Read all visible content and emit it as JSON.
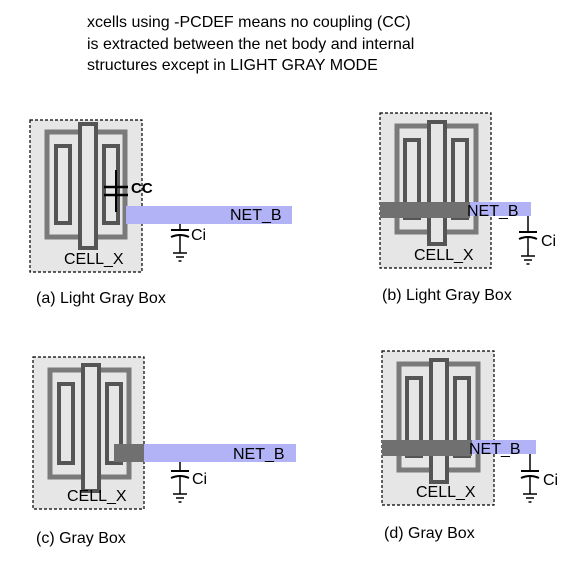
{
  "heading": {
    "lines": [
      "xcells using -PCDEF  means no coupling (CC)",
      "is extracted between the net body and internal",
      "structures except in LIGHT GRAY MODE"
    ]
  },
  "panels": [
    {
      "caption": "(a) Light Gray Box",
      "cell_label": "CELL_X",
      "net_label": "NET_B",
      "cap_label": "Ci",
      "cc_label": "CC"
    },
    {
      "caption": "(b) Light Gray Box",
      "cell_label": "CELL_X",
      "net_label": "NET_B",
      "cap_label": "Ci"
    },
    {
      "caption": "(c) Gray Box",
      "cell_label": "CELL_X",
      "net_label": "NET_B",
      "cap_label": "Ci"
    },
    {
      "caption": "(d) Gray Box",
      "cell_label": "CELL_X",
      "net_label": "NET_B",
      "cap_label": "Ci"
    }
  ],
  "colors": {
    "box_fill": "#e6e6e6",
    "structure_gray": "#7a7a7a",
    "structure_light": "#e6e6e6",
    "net_blue": "#b2b2f7",
    "net_overlap_gray": "#707070"
  }
}
